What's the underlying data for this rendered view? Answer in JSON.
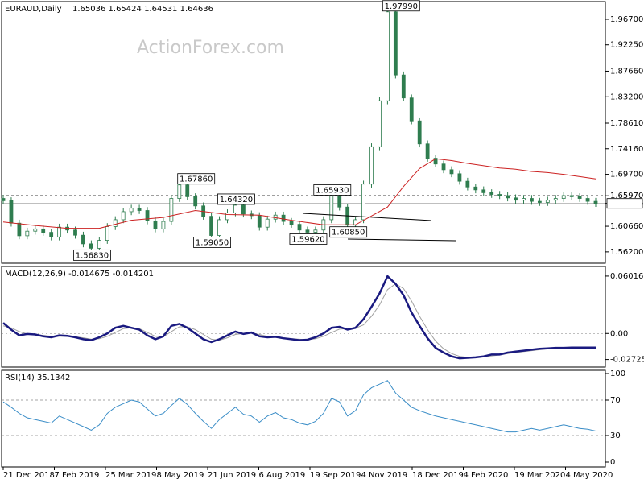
{
  "header": {
    "symbol_timeframe": "EURAUD,Daily",
    "ohlc": "1.65036 1.65424 1.64531 1.64636"
  },
  "watermark": "ActionForex.com",
  "colors": {
    "candle": "#2f7d4f",
    "sma": "#cc2222",
    "macd": "#1a1a80",
    "signal": "#a0a0a0",
    "rsi": "#3a8dc7",
    "price_box": "#ffffff"
  },
  "chart_data": [
    {
      "type": "candlestick",
      "title": "EURAUD,Daily",
      "ylim": [
        1.545,
        1.995
      ],
      "y_ticks": [
        "1.96700",
        "1.92250",
        "1.87660",
        "1.83200",
        "1.78610",
        "1.74160",
        "1.69700",
        "1.65970",
        "1.64636",
        "1.60660",
        "1.56200"
      ],
      "x_ticks": [
        "21 Dec 2018",
        "7 Feb 2019",
        "25 Mar 2019",
        "8 May 2019",
        "21 Jun 2019",
        "6 Aug 2019",
        "19 Sep 2019",
        "4 Nov 2019",
        "18 Dec 2019",
        "4 Feb 2020",
        "19 Mar 2020",
        "4 May 2020"
      ],
      "series": [
        {
          "name": "",
          "x": [
            0,
            5,
            10,
            15,
            20,
            25,
            30,
            35,
            40,
            45,
            50,
            55,
            60,
            65,
            70,
            75,
            80,
            85,
            90,
            95,
            100,
            105,
            110,
            115,
            120,
            125,
            130,
            135,
            140,
            145,
            150,
            155,
            160,
            165,
            170,
            175,
            180,
            185,
            190,
            195,
            200,
            205,
            210,
            215,
            220,
            225,
            230,
            235,
            240,
            245,
            250,
            255,
            260,
            265,
            270,
            275,
            280,
            285,
            290,
            295,
            300,
            305,
            310,
            315,
            320,
            325,
            330,
            335,
            340,
            345,
            350,
            355,
            360,
            365,
            370
          ],
          "close": [
            1.651,
            1.612,
            1.59,
            1.598,
            1.602,
            1.596,
            1.588,
            1.605,
            1.6,
            1.591,
            1.576,
            1.5683,
            1.582,
            1.606,
            1.618,
            1.632,
            1.638,
            1.634,
            1.616,
            1.602,
            1.615,
            1.655,
            1.6786,
            1.658,
            1.642,
            1.624,
            1.5905,
            1.618,
            1.63,
            1.6432,
            1.628,
            1.625,
            1.605,
            1.619,
            1.626,
            1.615,
            1.61,
            1.6,
            1.5962,
            1.6,
            1.618,
            1.6593,
            1.64,
            1.6085,
            1.618,
            1.68,
            1.745,
            1.825,
            1.9799,
            1.87,
            1.83,
            1.79,
            1.75,
            1.725,
            1.715,
            1.705,
            1.698,
            1.685,
            1.675,
            1.67,
            1.665,
            1.662,
            1.66,
            1.656,
            1.652,
            1.655,
            1.65,
            1.648,
            1.652,
            1.655,
            1.66,
            1.658,
            1.655,
            1.65,
            1.64636
          ]
        },
        {
          "name": "",
          "x": [
            0,
            20,
            40,
            60,
            80,
            100,
            120,
            140,
            160,
            180,
            200,
            220,
            240,
            250,
            260,
            270,
            280,
            290,
            300,
            310,
            320,
            330,
            340,
            350,
            360,
            370
          ],
          "values": [
            1.614,
            1.608,
            1.603,
            1.603,
            1.617,
            1.622,
            1.634,
            1.627,
            1.626,
            1.617,
            1.609,
            1.609,
            1.64,
            1.676,
            1.707,
            1.724,
            1.721,
            1.716,
            1.712,
            1.708,
            1.706,
            1.702,
            1.7,
            1.697,
            1.693,
            1.689
          ]
        }
      ],
      "annotations": [
        {
          "label": "1.97990",
          "x": 248,
          "y": 1.9799
        },
        {
          "label": "1.67860",
          "x": 120,
          "y": 1.6786
        },
        {
          "label": "1.64320",
          "x": 145,
          "y": 1.6432
        },
        {
          "label": "1.65930",
          "x": 205,
          "y": 1.6593
        },
        {
          "label": "1.56830",
          "x": 55,
          "y": 1.5683
        },
        {
          "label": "1.59050",
          "x": 130,
          "y": 1.5905
        },
        {
          "label": "1.59620",
          "x": 190,
          "y": 1.5962
        },
        {
          "label": "1.60850",
          "x": 215,
          "y": 1.6085
        }
      ],
      "reference_lines": [
        {
          "y": 1.6597
        }
      ],
      "grid": false
    },
    {
      "type": "line",
      "title": "MACD(12,26,9) -0.014675 -0.014201",
      "ylim": [
        -0.0335,
        0.066
      ],
      "y_ticks": [
        "0.060165",
        "0.00",
        "-0.02725"
      ],
      "x": [
        0,
        5,
        10,
        15,
        20,
        25,
        30,
        35,
        40,
        45,
        50,
        55,
        60,
        65,
        70,
        75,
        80,
        85,
        90,
        95,
        100,
        105,
        110,
        115,
        120,
        125,
        130,
        135,
        140,
        145,
        150,
        155,
        160,
        165,
        170,
        175,
        180,
        185,
        190,
        195,
        200,
        205,
        210,
        215,
        220,
        225,
        230,
        235,
        240,
        245,
        250,
        255,
        260,
        265,
        270,
        275,
        280,
        285,
        290,
        295,
        300,
        305,
        310,
        315,
        320,
        325,
        330,
        335,
        340,
        345,
        350,
        355,
        360,
        365,
        370
      ],
      "series": [
        {
          "name": "",
          "values": [
            0.011,
            0.004,
            -0.002,
            -0.0005,
            -0.001,
            -0.003,
            -0.004,
            -0.002,
            -0.0025,
            -0.004,
            -0.006,
            -0.007,
            -0.004,
            0.0,
            0.006,
            0.008,
            0.006,
            0.004,
            -0.002,
            -0.006,
            -0.003,
            0.008,
            0.01,
            0.006,
            0.0,
            -0.006,
            -0.009,
            -0.006,
            -0.002,
            0.002,
            -0.0005,
            0.001,
            -0.003,
            -0.004,
            -0.0035,
            -0.005,
            -0.006,
            -0.007,
            -0.0065,
            -0.004,
            0.0,
            0.006,
            0.007,
            0.004,
            0.006,
            0.015,
            0.028,
            0.042,
            0.06,
            0.052,
            0.04,
            0.022,
            0.008,
            -0.005,
            -0.015,
            -0.02,
            -0.024,
            -0.026,
            -0.0255,
            -0.025,
            -0.024,
            -0.022,
            -0.022,
            -0.02,
            -0.019,
            -0.018,
            -0.017,
            -0.016,
            -0.0155,
            -0.015,
            -0.015,
            -0.0148,
            -0.0147,
            -0.0147,
            -0.0147
          ]
        },
        {
          "name": "",
          "values": [
            0.008,
            0.006,
            0.002,
            -0.0005,
            -0.001,
            -0.002,
            -0.003,
            -0.003,
            -0.003,
            -0.0035,
            -0.0045,
            -0.006,
            -0.0055,
            -0.003,
            0.001,
            0.005,
            0.006,
            0.005,
            0.001,
            -0.003,
            -0.0035,
            0.002,
            0.007,
            0.007,
            0.004,
            -0.001,
            -0.006,
            -0.007,
            -0.0045,
            -0.001,
            0.0,
            0.0005,
            -0.001,
            -0.003,
            -0.0035,
            -0.0045,
            -0.0055,
            -0.006,
            -0.0065,
            -0.0055,
            -0.003,
            0.001,
            0.0045,
            0.005,
            0.0055,
            0.009,
            0.018,
            0.03,
            0.046,
            0.052,
            0.047,
            0.034,
            0.018,
            0.004,
            -0.008,
            -0.016,
            -0.021,
            -0.024,
            -0.025,
            -0.025,
            -0.0245,
            -0.0235,
            -0.0225,
            -0.021,
            -0.02,
            -0.019,
            -0.018,
            -0.017,
            -0.016,
            -0.0155,
            -0.0152,
            -0.015,
            -0.0148,
            -0.0146,
            -0.0142
          ]
        }
      ]
    },
    {
      "type": "line",
      "title": "RSI(14) 35.1342",
      "ylim": [
        0,
        100
      ],
      "y_ticks": [
        "100",
        "70",
        "30",
        "0"
      ],
      "reference_lines": [
        {
          "y": 70
        },
        {
          "y": 30
        }
      ],
      "x": [
        0,
        5,
        10,
        15,
        20,
        25,
        30,
        35,
        40,
        45,
        50,
        55,
        60,
        65,
        70,
        75,
        80,
        85,
        90,
        95,
        100,
        105,
        110,
        115,
        120,
        125,
        130,
        135,
        140,
        145,
        150,
        155,
        160,
        165,
        170,
        175,
        180,
        185,
        190,
        195,
        200,
        205,
        210,
        215,
        220,
        225,
        230,
        235,
        240,
        245,
        250,
        255,
        260,
        265,
        270,
        275,
        280,
        285,
        290,
        295,
        300,
        305,
        310,
        315,
        320,
        325,
        330,
        335,
        340,
        345,
        350,
        355,
        360,
        365,
        370
      ],
      "series": [
        {
          "name": "",
          "values": [
            68,
            62,
            55,
            50,
            48,
            46,
            44,
            52,
            48,
            44,
            40,
            36,
            42,
            55,
            62,
            66,
            70,
            68,
            60,
            52,
            55,
            64,
            72,
            65,
            55,
            46,
            38,
            48,
            55,
            62,
            54,
            52,
            45,
            52,
            56,
            50,
            48,
            44,
            42,
            46,
            55,
            72,
            68,
            52,
            58,
            76,
            84,
            88,
            92,
            78,
            70,
            62,
            58,
            55,
            52,
            50,
            48,
            46,
            44,
            42,
            40,
            38,
            36,
            34,
            34,
            36,
            38,
            36,
            38,
            40,
            42,
            40,
            38,
            37,
            35
          ]
        }
      ]
    }
  ]
}
